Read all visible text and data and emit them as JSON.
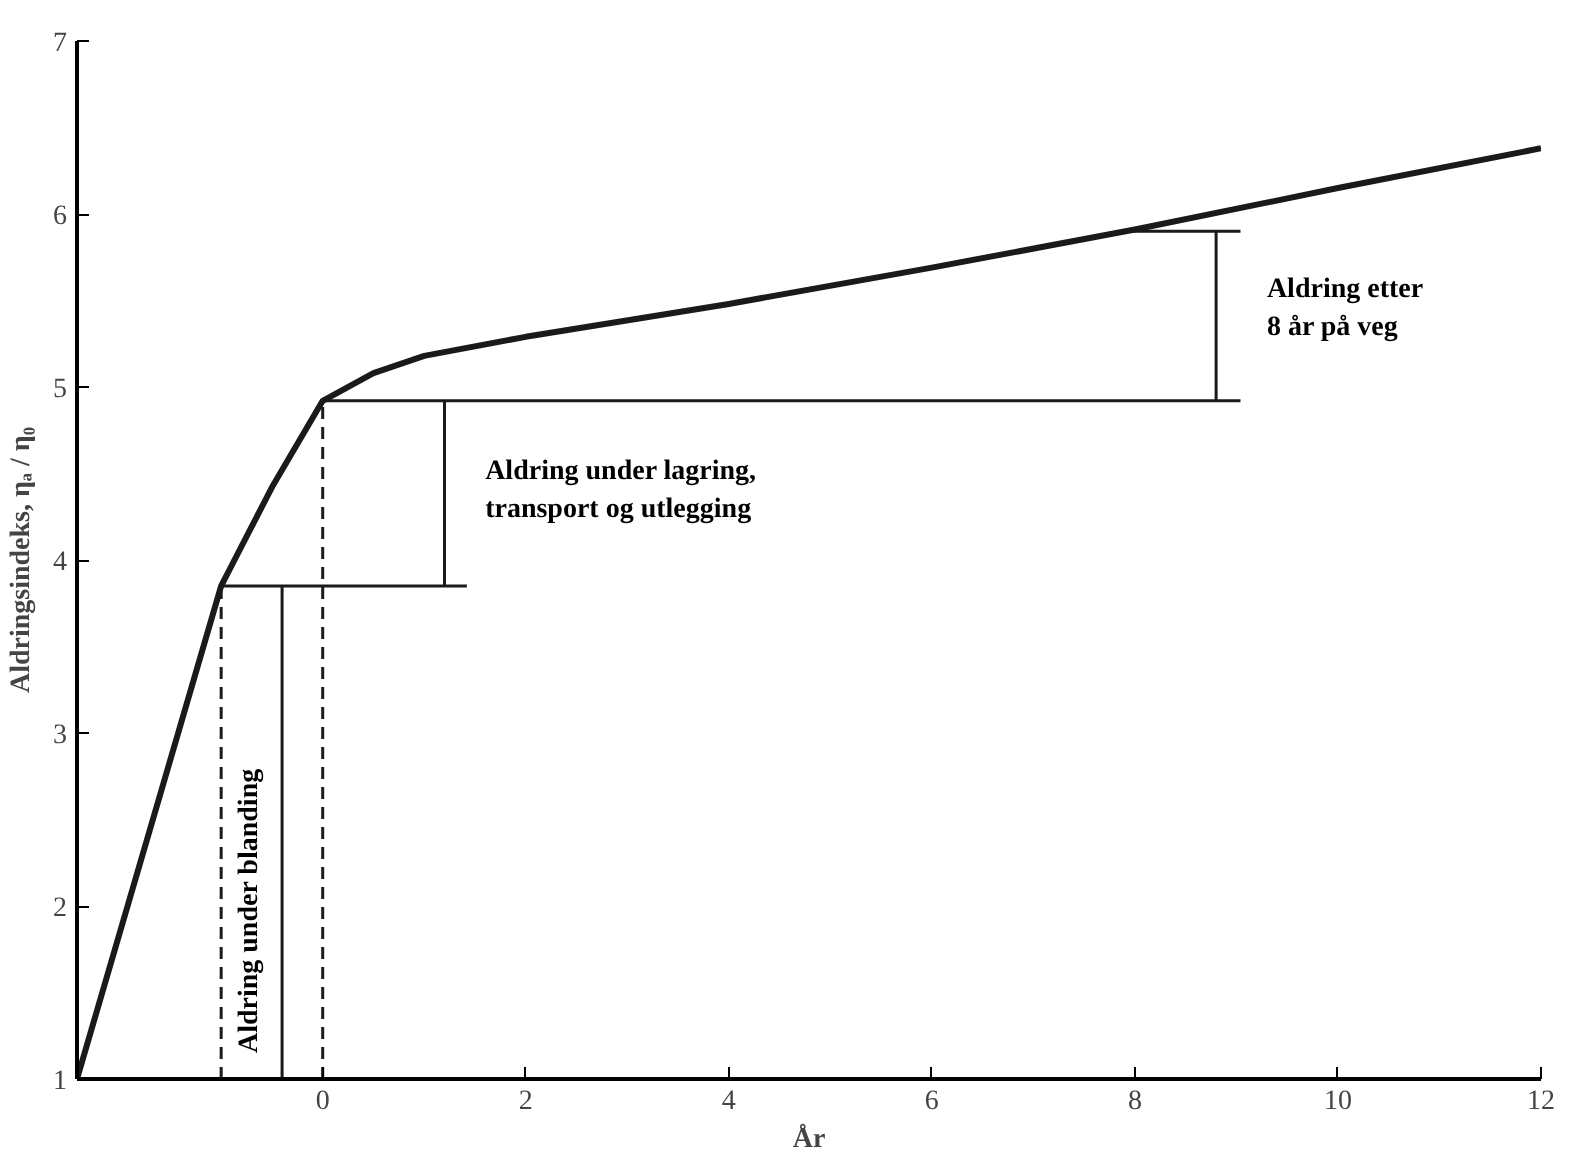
{
  "chart_data": {
    "type": "line",
    "xlabel": "År",
    "ylabel": "Aldringsindeks, ηₐ / η₀",
    "xlim": [
      -2.42,
      12
    ],
    "ylim": [
      1,
      7
    ],
    "xticks": [
      0,
      2,
      4,
      6,
      8,
      10,
      12
    ],
    "yticks": [
      1,
      2,
      3,
      4,
      5,
      6,
      7
    ],
    "grid": false,
    "series": [
      {
        "color": "#1a1a1a",
        "x": [
          -2.42,
          -1,
          -0.5,
          0,
          0.5,
          1,
          2,
          4,
          6,
          8,
          10,
          12
        ],
        "values": [
          1,
          3.85,
          4.42,
          4.92,
          5.08,
          5.18,
          5.29,
          5.48,
          5.69,
          5.91,
          6.15,
          6.38
        ]
      },
      {
        "color": "#1a1a1a",
        "line_style": "dashed",
        "x": [
          -1,
          -1
        ],
        "values": [
          1,
          3.85
        ]
      },
      {
        "color": "#1a1a1a",
        "line_style": "dashed",
        "x": [
          0,
          0
        ],
        "values": [
          1,
          4.92
        ]
      },
      {
        "color": "#1a1a1a",
        "x": [
          -1,
          1.42
        ],
        "values": [
          3.85,
          3.85
        ]
      },
      {
        "color": "#1a1a1a",
        "x": [
          0,
          9.04
        ],
        "values": [
          4.92,
          4.92
        ]
      },
      {
        "color": "#1a1a1a",
        "x": [
          7.9,
          9.04
        ],
        "values": [
          5.9,
          5.9
        ]
      },
      {
        "color": "#1a1a1a",
        "x": [
          -0.4,
          -0.4
        ],
        "values": [
          1,
          3.85
        ]
      },
      {
        "color": "#1a1a1a",
        "x": [
          1.2,
          1.2
        ],
        "values": [
          3.85,
          4.92
        ]
      },
      {
        "color": "#1a1a1a",
        "x": [
          8.8,
          8.8
        ],
        "values": [
          4.92,
          5.9
        ]
      }
    ],
    "annotations": [
      "Aldring etter\n8 år på veg",
      "Aldring under lagring,\ntransport og utlegging",
      "Aldring under blanding"
    ]
  }
}
